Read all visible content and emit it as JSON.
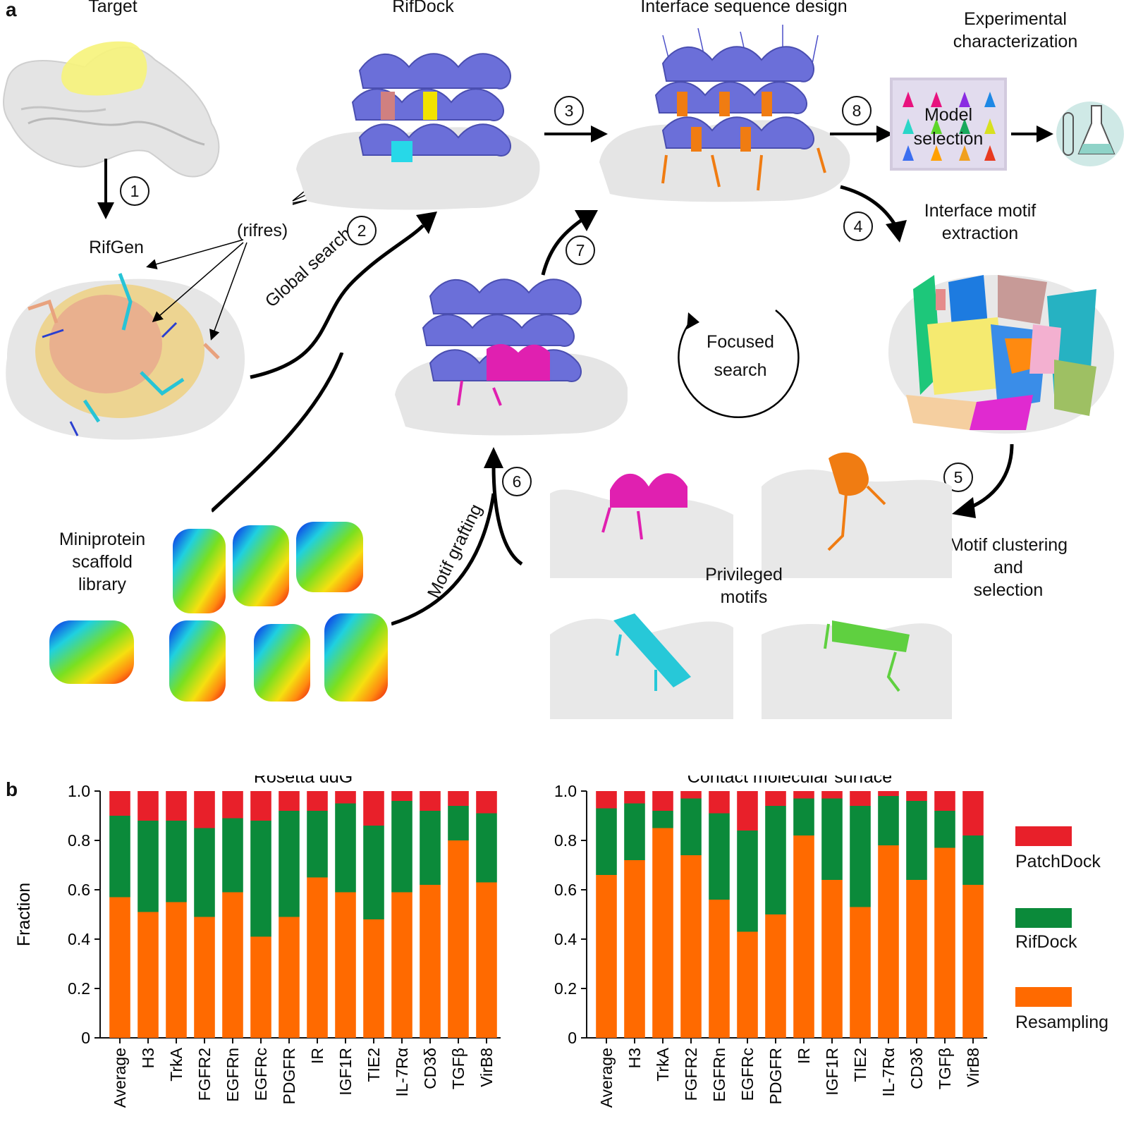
{
  "panel_a": {
    "letter": "a",
    "labels": {
      "target": "Target",
      "rifdock": "RifDock",
      "interface_design": "Interface sequence design",
      "experimental_1": "Experimental",
      "experimental_2": "characterization",
      "model_1": "Model",
      "model_2": "selection",
      "rifgen": "RifGen",
      "rifres": "(rifres)",
      "global_search": "Global search",
      "interface_motif_1": "Interface motif",
      "interface_motif_2": "extraction",
      "focused_1": "Focused",
      "focused_2": "search",
      "miniprotein_1": "Miniprotein",
      "miniprotein_2": "scaffold",
      "miniprotein_3": "library",
      "motif_grafting": "Motif grafting",
      "motif_clustering_1": "Motif clustering",
      "motif_clustering_2": "and",
      "motif_clustering_3": "selection",
      "privileged_1": "Privileged",
      "privileged_2": "motifs"
    },
    "steps": [
      "1",
      "2",
      "3",
      "4",
      "5",
      "6",
      "7",
      "8"
    ]
  },
  "panel_b": {
    "letter": "b",
    "legend": [
      "PatchDock",
      "RifDock",
      "Resampling"
    ],
    "colors": {
      "PatchDock": "#e8202a",
      "RifDock": "#0b8a3a",
      "Resampling": "#ff6a00"
    }
  },
  "chart_data": [
    {
      "type": "bar",
      "stacked": true,
      "title": "Rosetta ddG",
      "ylabel": "Fraction",
      "ylim": [
        0,
        1.0
      ],
      "yticks": [
        "0",
        "0.2",
        "0.4",
        "0.6",
        "0.8",
        "1.0"
      ],
      "categories": [
        "Average",
        "H3",
        "TrkA",
        "FGFR2",
        "EGFRn",
        "EGFRc",
        "PDGFR",
        "IR",
        "IGF1R",
        "TIE2",
        "IL-7Rα",
        "CD3δ",
        "TGFβ",
        "VirB8"
      ],
      "series": [
        {
          "name": "Resampling",
          "values": [
            0.57,
            0.51,
            0.55,
            0.49,
            0.59,
            0.41,
            0.49,
            0.65,
            0.59,
            0.48,
            0.59,
            0.62,
            0.8,
            0.63
          ]
        },
        {
          "name": "RifDock",
          "values": [
            0.33,
            0.37,
            0.33,
            0.36,
            0.3,
            0.47,
            0.43,
            0.27,
            0.36,
            0.38,
            0.37,
            0.3,
            0.14,
            0.28
          ]
        },
        {
          "name": "PatchDock",
          "values": [
            0.1,
            0.12,
            0.12,
            0.15,
            0.11,
            0.12,
            0.08,
            0.08,
            0.05,
            0.14,
            0.04,
            0.08,
            0.06,
            0.09
          ]
        }
      ]
    },
    {
      "type": "bar",
      "stacked": true,
      "title": "Contact molecular surface",
      "ylim": [
        0,
        1.0
      ],
      "yticks": [
        "0",
        "0.2",
        "0.4",
        "0.6",
        "0.8",
        "1.0"
      ],
      "categories": [
        "Average",
        "H3",
        "TrkA",
        "FGFR2",
        "EGFRn",
        "EGFRc",
        "PDGFR",
        "IR",
        "IGF1R",
        "TIE2",
        "IL-7Rα",
        "CD3δ",
        "TGFβ",
        "VirB8"
      ],
      "series": [
        {
          "name": "Resampling",
          "values": [
            0.66,
            0.72,
            0.85,
            0.74,
            0.56,
            0.43,
            0.5,
            0.82,
            0.64,
            0.53,
            0.78,
            0.64,
            0.77,
            0.62
          ]
        },
        {
          "name": "RifDock",
          "values": [
            0.27,
            0.23,
            0.07,
            0.23,
            0.35,
            0.41,
            0.44,
            0.15,
            0.33,
            0.41,
            0.2,
            0.32,
            0.15,
            0.2
          ]
        },
        {
          "name": "PatchDock",
          "values": [
            0.07,
            0.05,
            0.08,
            0.03,
            0.09,
            0.16,
            0.06,
            0.03,
            0.03,
            0.06,
            0.02,
            0.04,
            0.08,
            0.18
          ]
        }
      ]
    }
  ]
}
